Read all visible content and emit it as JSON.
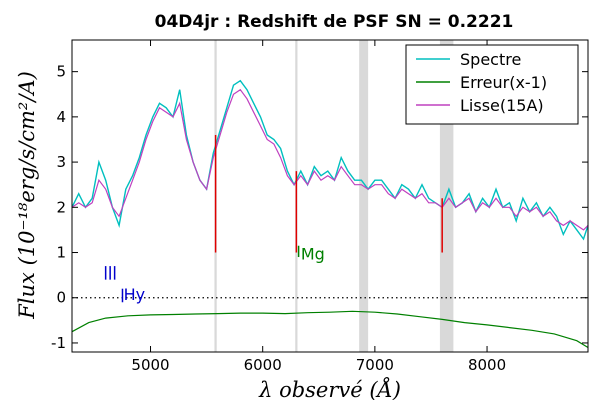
{
  "chart_data": {
    "type": "line",
    "title": "04D4jr : Redshift de PSF SN = 0.2221",
    "xlabel": "λ observé (Å)",
    "ylabel": "Flux (10⁻¹⁸erg/s/cm²/A)",
    "xlim": [
      4300,
      8900
    ],
    "ylim": [
      -1.2,
      5.7
    ],
    "xticks": [
      5000,
      6000,
      7000,
      8000
    ],
    "xtick_labels": [
      "5000",
      "6000",
      "7000",
      "8000"
    ],
    "yticks": [
      -1,
      0,
      1,
      2,
      3,
      4,
      5
    ],
    "ytick_labels": [
      "-1",
      "0",
      "1",
      "2",
      "3",
      "4",
      "5"
    ],
    "grid": false,
    "legend_position": "top-right",
    "colors": {
      "spectre": "#00bfbf",
      "erreur": "#008000",
      "lisse": "#bf40bf",
      "bands": "#d9d9d9",
      "lines_red": "#e00000",
      "annot_blue": "#0000cc",
      "annot_green": "#008000"
    },
    "series": [
      {
        "name": "Spectre",
        "x": [
          4300,
          4360,
          4420,
          4480,
          4540,
          4600,
          4660,
          4720,
          4780,
          4840,
          4900,
          4960,
          5020,
          5080,
          5140,
          5200,
          5260,
          5320,
          5380,
          5440,
          5500,
          5560,
          5620,
          5680,
          5740,
          5800,
          5860,
          5920,
          5980,
          6040,
          6100,
          6160,
          6220,
          6280,
          6340,
          6400,
          6460,
          6520,
          6580,
          6640,
          6700,
          6760,
          6820,
          6880,
          6940,
          7000,
          7060,
          7120,
          7180,
          7240,
          7300,
          7360,
          7420,
          7480,
          7540,
          7600,
          7660,
          7720,
          7780,
          7840,
          7900,
          7960,
          8020,
          8080,
          8140,
          8200,
          8260,
          8320,
          8380,
          8440,
          8500,
          8560,
          8620,
          8680,
          8740,
          8800,
          8860,
          8900
        ],
        "y": [
          2.0,
          2.3,
          2.0,
          2.2,
          3.0,
          2.6,
          2.0,
          1.6,
          2.4,
          2.7,
          3.1,
          3.6,
          4.0,
          4.3,
          4.2,
          4.0,
          4.6,
          3.6,
          3.0,
          2.6,
          2.4,
          3.2,
          3.7,
          4.2,
          4.7,
          4.8,
          4.6,
          4.3,
          4.0,
          3.6,
          3.5,
          3.3,
          2.8,
          2.5,
          2.8,
          2.5,
          2.9,
          2.7,
          2.8,
          2.6,
          3.1,
          2.8,
          2.6,
          2.6,
          2.4,
          2.6,
          2.6,
          2.4,
          2.2,
          2.5,
          2.4,
          2.2,
          2.5,
          2.2,
          2.1,
          2.0,
          2.4,
          2.0,
          2.1,
          2.3,
          1.9,
          2.2,
          2.0,
          2.4,
          2.0,
          2.1,
          1.7,
          2.2,
          1.9,
          2.1,
          1.8,
          2.0,
          1.8,
          1.4,
          1.7,
          1.5,
          1.3,
          1.6
        ]
      },
      {
        "name": "Erreur(x-1)",
        "x": [
          4300,
          4450,
          4600,
          4800,
          5000,
          5200,
          5400,
          5600,
          5800,
          6000,
          6200,
          6400,
          6600,
          6800,
          7000,
          7200,
          7400,
          7600,
          7800,
          8000,
          8200,
          8400,
          8600,
          8800,
          8900
        ],
        "y": [
          -0.75,
          -0.55,
          -0.45,
          -0.4,
          -0.38,
          -0.37,
          -0.36,
          -0.35,
          -0.34,
          -0.34,
          -0.35,
          -0.33,
          -0.32,
          -0.3,
          -0.32,
          -0.36,
          -0.42,
          -0.48,
          -0.55,
          -0.6,
          -0.66,
          -0.72,
          -0.8,
          -0.95,
          -1.1
        ]
      },
      {
        "name": "Lisse(15A)",
        "x": [
          4300,
          4360,
          4420,
          4480,
          4540,
          4600,
          4660,
          4720,
          4780,
          4840,
          4900,
          4960,
          5020,
          5080,
          5140,
          5200,
          5260,
          5320,
          5380,
          5440,
          5500,
          5560,
          5620,
          5680,
          5740,
          5800,
          5860,
          5920,
          5980,
          6040,
          6100,
          6160,
          6220,
          6280,
          6340,
          6400,
          6460,
          6520,
          6580,
          6640,
          6700,
          6760,
          6820,
          6880,
          6940,
          7000,
          7060,
          7120,
          7180,
          7240,
          7300,
          7360,
          7420,
          7480,
          7540,
          7600,
          7660,
          7720,
          7780,
          7840,
          7900,
          7960,
          8020,
          8080,
          8140,
          8200,
          8260,
          8320,
          8380,
          8440,
          8500,
          8560,
          8620,
          8680,
          8740,
          8800,
          8860,
          8900
        ],
        "y": [
          2.0,
          2.1,
          2.0,
          2.1,
          2.6,
          2.4,
          2.0,
          1.8,
          2.2,
          2.6,
          3.0,
          3.5,
          3.9,
          4.2,
          4.1,
          4.0,
          4.3,
          3.5,
          3.0,
          2.6,
          2.4,
          3.1,
          3.6,
          4.1,
          4.5,
          4.6,
          4.4,
          4.1,
          3.8,
          3.5,
          3.4,
          3.1,
          2.7,
          2.5,
          2.7,
          2.5,
          2.8,
          2.6,
          2.7,
          2.6,
          2.9,
          2.7,
          2.5,
          2.5,
          2.4,
          2.5,
          2.5,
          2.3,
          2.2,
          2.4,
          2.3,
          2.2,
          2.3,
          2.1,
          2.1,
          2.0,
          2.2,
          2.0,
          2.1,
          2.2,
          1.9,
          2.1,
          2.0,
          2.2,
          2.0,
          2.0,
          1.8,
          2.0,
          1.9,
          2.0,
          1.8,
          1.9,
          1.7,
          1.6,
          1.7,
          1.6,
          1.5,
          1.6
        ]
      }
    ],
    "vertical_lines": [
      {
        "x": 4600,
        "y0": 0.4,
        "y1": 0.7,
        "color": "#0000cc"
      },
      {
        "x": 4640,
        "y0": 0.4,
        "y1": 0.7,
        "color": "#0000cc"
      },
      {
        "x": 4680,
        "y0": 0.4,
        "y1": 0.7,
        "color": "#0000cc"
      },
      {
        "x": 4750,
        "y0": -0.1,
        "y1": 0.2,
        "color": "#0000cc"
      },
      {
        "x": 6320,
        "y0": 0.9,
        "y1": 1.15,
        "color": "#008000"
      },
      {
        "x": 5580,
        "y0": 1.0,
        "y1": 3.6,
        "color": "#e00000"
      },
      {
        "x": 6300,
        "y0": 1.0,
        "y1": 2.8,
        "color": "#e00000"
      },
      {
        "x": 7600,
        "y0": 1.0,
        "y1": 2.2,
        "color": "#e00000"
      }
    ],
    "bands": [
      {
        "x0": 5570,
        "x1": 5590
      },
      {
        "x0": 6290,
        "x1": 6310
      },
      {
        "x0": 6860,
        "x1": 6940
      },
      {
        "x0": 7580,
        "x1": 7700
      }
    ],
    "annotations": [
      {
        "text": "Hy",
        "x": 4760,
        "y": -0.05,
        "color": "#0000cc"
      },
      {
        "text": "Mg",
        "x": 6340,
        "y": 0.85,
        "color": "#008000"
      }
    ]
  }
}
